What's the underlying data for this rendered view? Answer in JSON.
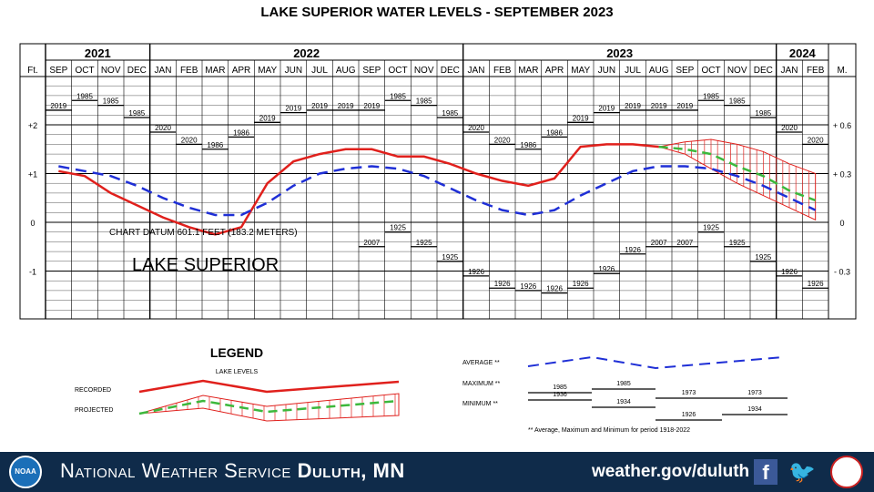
{
  "title": "LAKE SUPERIOR WATER LEVELS - SEPTEMBER 2023",
  "chart_data": {
    "type": "line",
    "title": "LAKE SUPERIOR WATER LEVELS - SEPTEMBER 2023",
    "left_axis_label": "Ft.",
    "right_axis_label": "M.",
    "left_ticks": [
      "+2",
      "+1",
      "0",
      "-1"
    ],
    "right_ticks": [
      "+ 0.6",
      "+ 0.3",
      "0",
      "- 0.3"
    ],
    "left_tick_values": [
      2,
      1,
      0,
      -1
    ],
    "ylim_ft": [
      -2,
      3
    ],
    "years": [
      {
        "label": "2021",
        "start": 0,
        "span": 4
      },
      {
        "label": "2022",
        "start": 4,
        "span": 12
      },
      {
        "label": "2023",
        "start": 16,
        "span": 12
      },
      {
        "label": "2024",
        "start": 28,
        "span": 2
      }
    ],
    "months": [
      "SEP",
      "OCT",
      "NOV",
      "DEC",
      "JAN",
      "FEB",
      "MAR",
      "APR",
      "MAY",
      "JUN",
      "JUL",
      "AUG",
      "SEP",
      "OCT",
      "NOV",
      "DEC",
      "JAN",
      "FEB",
      "MAR",
      "APR",
      "MAY",
      "JUN",
      "JUL",
      "AUG",
      "SEP",
      "OCT",
      "NOV",
      "DEC",
      "JAN",
      "FEB"
    ],
    "datum_note": "CHART DATUM  601.1 FEET (183.2 METERS)",
    "lake_label": "LAKE SUPERIOR",
    "series": [
      {
        "name": "RECORDED",
        "color": "#e0201c",
        "x": [
          0,
          1,
          2,
          3,
          4,
          5,
          6,
          7,
          8,
          9,
          10,
          11,
          12,
          13,
          14,
          15,
          16,
          17,
          18,
          19,
          20,
          21,
          22,
          23
        ],
        "values": [
          1.05,
          0.95,
          0.6,
          0.35,
          0.1,
          -0.1,
          -0.25,
          -0.1,
          0.8,
          1.25,
          1.4,
          1.5,
          1.5,
          1.35,
          1.35,
          1.2,
          1.0,
          0.85,
          0.75,
          0.9,
          1.55,
          1.6,
          1.6,
          1.55
        ]
      },
      {
        "name": "AVERAGE",
        "color": "#1f2fd6",
        "x": [
          0,
          1,
          2,
          3,
          4,
          5,
          6,
          7,
          8,
          9,
          10,
          11,
          12,
          13,
          14,
          15,
          16,
          17,
          18,
          19,
          20,
          21,
          22,
          23,
          24,
          25,
          26,
          27,
          28,
          29
        ],
        "values": [
          1.15,
          1.05,
          0.95,
          0.75,
          0.5,
          0.3,
          0.15,
          0.15,
          0.4,
          0.75,
          1.0,
          1.1,
          1.15,
          1.1,
          0.95,
          0.7,
          0.45,
          0.25,
          0.15,
          0.25,
          0.55,
          0.8,
          1.05,
          1.15,
          1.15,
          1.1,
          0.95,
          0.75,
          0.5,
          0.25
        ]
      },
      {
        "name": "PROJECTED",
        "color": "#3cb83c",
        "x": [
          23,
          24,
          25,
          26,
          27,
          28,
          29
        ],
        "values": [
          1.55,
          1.5,
          1.4,
          1.15,
          0.95,
          0.65,
          0.45
        ]
      }
    ],
    "projection_band": {
      "x": [
        23,
        24,
        25,
        26,
        27,
        28,
        29
      ],
      "upper": [
        1.55,
        1.65,
        1.7,
        1.6,
        1.45,
        1.2,
        1.0
      ],
      "lower": [
        1.55,
        1.4,
        1.1,
        0.8,
        0.55,
        0.3,
        0.05
      ]
    },
    "max_labels": [
      {
        "x": 0,
        "ft": 2.3,
        "label": "2019"
      },
      {
        "x": 1,
        "ft": 2.5,
        "label": "1985"
      },
      {
        "x": 2,
        "ft": 2.4,
        "label": "1985"
      },
      {
        "x": 3,
        "ft": 2.15,
        "label": "1985"
      },
      {
        "x": 4,
        "ft": 1.85,
        "label": "2020"
      },
      {
        "x": 5,
        "ft": 1.6,
        "label": "2020"
      },
      {
        "x": 6,
        "ft": 1.5,
        "label": "1986"
      },
      {
        "x": 7,
        "ft": 1.75,
        "label": "1986"
      },
      {
        "x": 8,
        "ft": 2.05,
        "label": "2019"
      },
      {
        "x": 9,
        "ft": 2.25,
        "label": "2019"
      },
      {
        "x": 10,
        "ft": 2.3,
        "label": "2019"
      },
      {
        "x": 11,
        "ft": 2.3,
        "label": "2019"
      },
      {
        "x": 12,
        "ft": 2.3,
        "label": "2019"
      },
      {
        "x": 13,
        "ft": 2.5,
        "label": "1985"
      },
      {
        "x": 14,
        "ft": 2.4,
        "label": "1985"
      },
      {
        "x": 15,
        "ft": 2.15,
        "label": "1985"
      },
      {
        "x": 16,
        "ft": 1.85,
        "label": "2020"
      },
      {
        "x": 17,
        "ft": 1.6,
        "label": "2020"
      },
      {
        "x": 18,
        "ft": 1.5,
        "label": "1986"
      },
      {
        "x": 19,
        "ft": 1.75,
        "label": "1986"
      },
      {
        "x": 20,
        "ft": 2.05,
        "label": "2019"
      },
      {
        "x": 21,
        "ft": 2.25,
        "label": "2019"
      },
      {
        "x": 22,
        "ft": 2.3,
        "label": "2019"
      },
      {
        "x": 23,
        "ft": 2.3,
        "label": "2019"
      },
      {
        "x": 24,
        "ft": 2.3,
        "label": "2019"
      },
      {
        "x": 25,
        "ft": 2.5,
        "label": "1985"
      },
      {
        "x": 26,
        "ft": 2.4,
        "label": "1985"
      },
      {
        "x": 27,
        "ft": 2.15,
        "label": "1985"
      },
      {
        "x": 28,
        "ft": 1.85,
        "label": "2020"
      },
      {
        "x": 29,
        "ft": 1.6,
        "label": "2020"
      }
    ],
    "min_labels": [
      {
        "x": 12,
        "ft": -0.5,
        "label": "2007"
      },
      {
        "x": 13,
        "ft": -0.2,
        "label": "1925"
      },
      {
        "x": 14,
        "ft": -0.5,
        "label": "1925"
      },
      {
        "x": 15,
        "ft": -0.8,
        "label": "1925"
      },
      {
        "x": 16,
        "ft": -1.1,
        "label": "1926"
      },
      {
        "x": 17,
        "ft": -1.35,
        "label": "1926"
      },
      {
        "x": 18,
        "ft": -1.4,
        "label": "1926"
      },
      {
        "x": 19,
        "ft": -1.45,
        "label": "1926"
      },
      {
        "x": 20,
        "ft": -1.35,
        "label": "1926"
      },
      {
        "x": 21,
        "ft": -1.05,
        "label": "1926"
      },
      {
        "x": 22,
        "ft": -0.65,
        "label": "1926"
      },
      {
        "x": 23,
        "ft": -0.5,
        "label": "2007"
      },
      {
        "x": 24,
        "ft": -0.5,
        "label": "2007"
      },
      {
        "x": 25,
        "ft": -0.2,
        "label": "1925"
      },
      {
        "x": 26,
        "ft": -0.5,
        "label": "1925"
      },
      {
        "x": 27,
        "ft": -0.8,
        "label": "1925"
      },
      {
        "x": 28,
        "ft": -1.1,
        "label": "1926"
      },
      {
        "x": 29,
        "ft": -1.35,
        "label": "1926"
      }
    ]
  },
  "legend": {
    "title": "LEGEND",
    "subtitle": "LAKE LEVELS",
    "recorded_label": "RECORDED",
    "projected_label": "PROJECTED",
    "average_label": "AVERAGE **",
    "maximum_label": "MAXIMUM **",
    "minimum_label": "MINIMUM **",
    "max_values": [
      "1985",
      "1985",
      "1973",
      "1973"
    ],
    "min_values": [
      "1936",
      "1934",
      "1926",
      "1934"
    ],
    "footnote": "** Average, Maximum and Minimum for period 1918-2022"
  },
  "footer": {
    "org_prefix": "National Weather Service",
    "office": "Duluth, MN",
    "website": "weather.gov/duluth",
    "noaa_text": "NOAA",
    "facebook_icon": "facebook-icon",
    "twitter_icon": "twitter-icon"
  },
  "colors": {
    "recorded": "#e0201c",
    "average": "#1f2fd6",
    "projected": "#3cb83c",
    "footer_bg": "#0f2b4a"
  }
}
